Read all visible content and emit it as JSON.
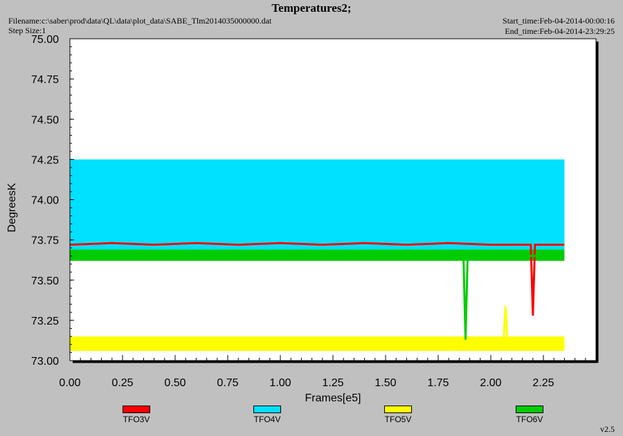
{
  "header": {
    "title": "Temperatures2;",
    "filename": "Filename:c:\\saber\\prod\\data\\QL\\data\\plot_data\\SABE_Tlm2014035000000.dat",
    "step_size": "Step Size:1",
    "start_time": "Start_time:Feb-04-2014-00:00:16",
    "end_time": "End_time:Feb-04-2014-23:29:25",
    "version": "v2.5"
  },
  "chart_data": {
    "type": "line",
    "title": "Temperatures2;",
    "xlabel": "Frames[e5]",
    "ylabel": "DegreesK",
    "xlim": [
      0,
      2.5
    ],
    "ylim": [
      73.0,
      75.0
    ],
    "x_ticks": [
      0.0,
      0.25,
      0.5,
      0.75,
      1.0,
      1.25,
      1.5,
      1.75,
      2.0,
      2.25
    ],
    "x_tick_labels": [
      "0.00",
      "0.25",
      "0.50",
      "0.75",
      "1.00",
      "1.25",
      "1.50",
      "1.75",
      "2.00",
      "2.25"
    ],
    "y_ticks": [
      73.0,
      73.25,
      73.5,
      73.75,
      74.0,
      74.25,
      74.5,
      74.75,
      75.0
    ],
    "y_tick_labels": [
      "73.00",
      "73.25",
      "73.50",
      "73.75",
      "74.00",
      "74.25",
      "74.50",
      "74.75",
      "75.00"
    ],
    "grid": false,
    "legend_position": "bottom",
    "series": [
      {
        "name": "TFO3V",
        "color": "#ff0000",
        "x": [
          0.0,
          0.2,
          0.4,
          0.6,
          0.8,
          1.0,
          1.2,
          1.4,
          1.6,
          1.8,
          2.0,
          2.19,
          2.2,
          2.21,
          2.35
        ],
        "y": [
          73.72,
          73.73,
          73.72,
          73.73,
          73.72,
          73.73,
          73.72,
          73.73,
          73.72,
          73.73,
          73.72,
          73.72,
          73.28,
          73.72,
          73.72
        ]
      },
      {
        "name": "TFO4V",
        "color": "#00e0ff",
        "x": [
          0.0,
          0.2,
          0.4,
          0.6,
          0.8,
          1.0,
          1.2,
          1.4,
          1.6,
          1.8,
          2.0,
          2.2,
          2.35
        ],
        "y": [
          74.0,
          74.02,
          73.98,
          74.01,
          74.0,
          73.99,
          74.01,
          74.0,
          74.02,
          73.99,
          74.0,
          74.01,
          74.0
        ],
        "band_low": 73.69,
        "band_high": 74.25
      },
      {
        "name": "TFO5V",
        "color": "#ffff00",
        "x": [
          0.0,
          0.2,
          0.4,
          0.6,
          0.8,
          1.0,
          1.2,
          1.4,
          1.6,
          1.8,
          2.0,
          2.06,
          2.07,
          2.08,
          2.35
        ],
        "y": [
          73.1,
          73.11,
          73.09,
          73.1,
          73.11,
          73.1,
          73.09,
          73.1,
          73.11,
          73.1,
          73.1,
          73.1,
          73.34,
          73.1,
          73.1
        ],
        "band_low": 73.06,
        "band_high": 73.15
      },
      {
        "name": "TFO6V",
        "color": "#00cc00",
        "x": [
          0.0,
          0.2,
          0.4,
          0.6,
          0.8,
          1.0,
          1.2,
          1.4,
          1.6,
          1.8,
          1.87,
          1.88,
          1.89,
          2.0,
          2.2,
          2.35
        ],
        "y": [
          73.66,
          73.65,
          73.66,
          73.65,
          73.66,
          73.65,
          73.66,
          73.65,
          73.66,
          73.65,
          73.65,
          73.13,
          73.65,
          73.66,
          73.65,
          73.65
        ],
        "band_low": 73.62,
        "band_high": 73.69
      }
    ]
  }
}
